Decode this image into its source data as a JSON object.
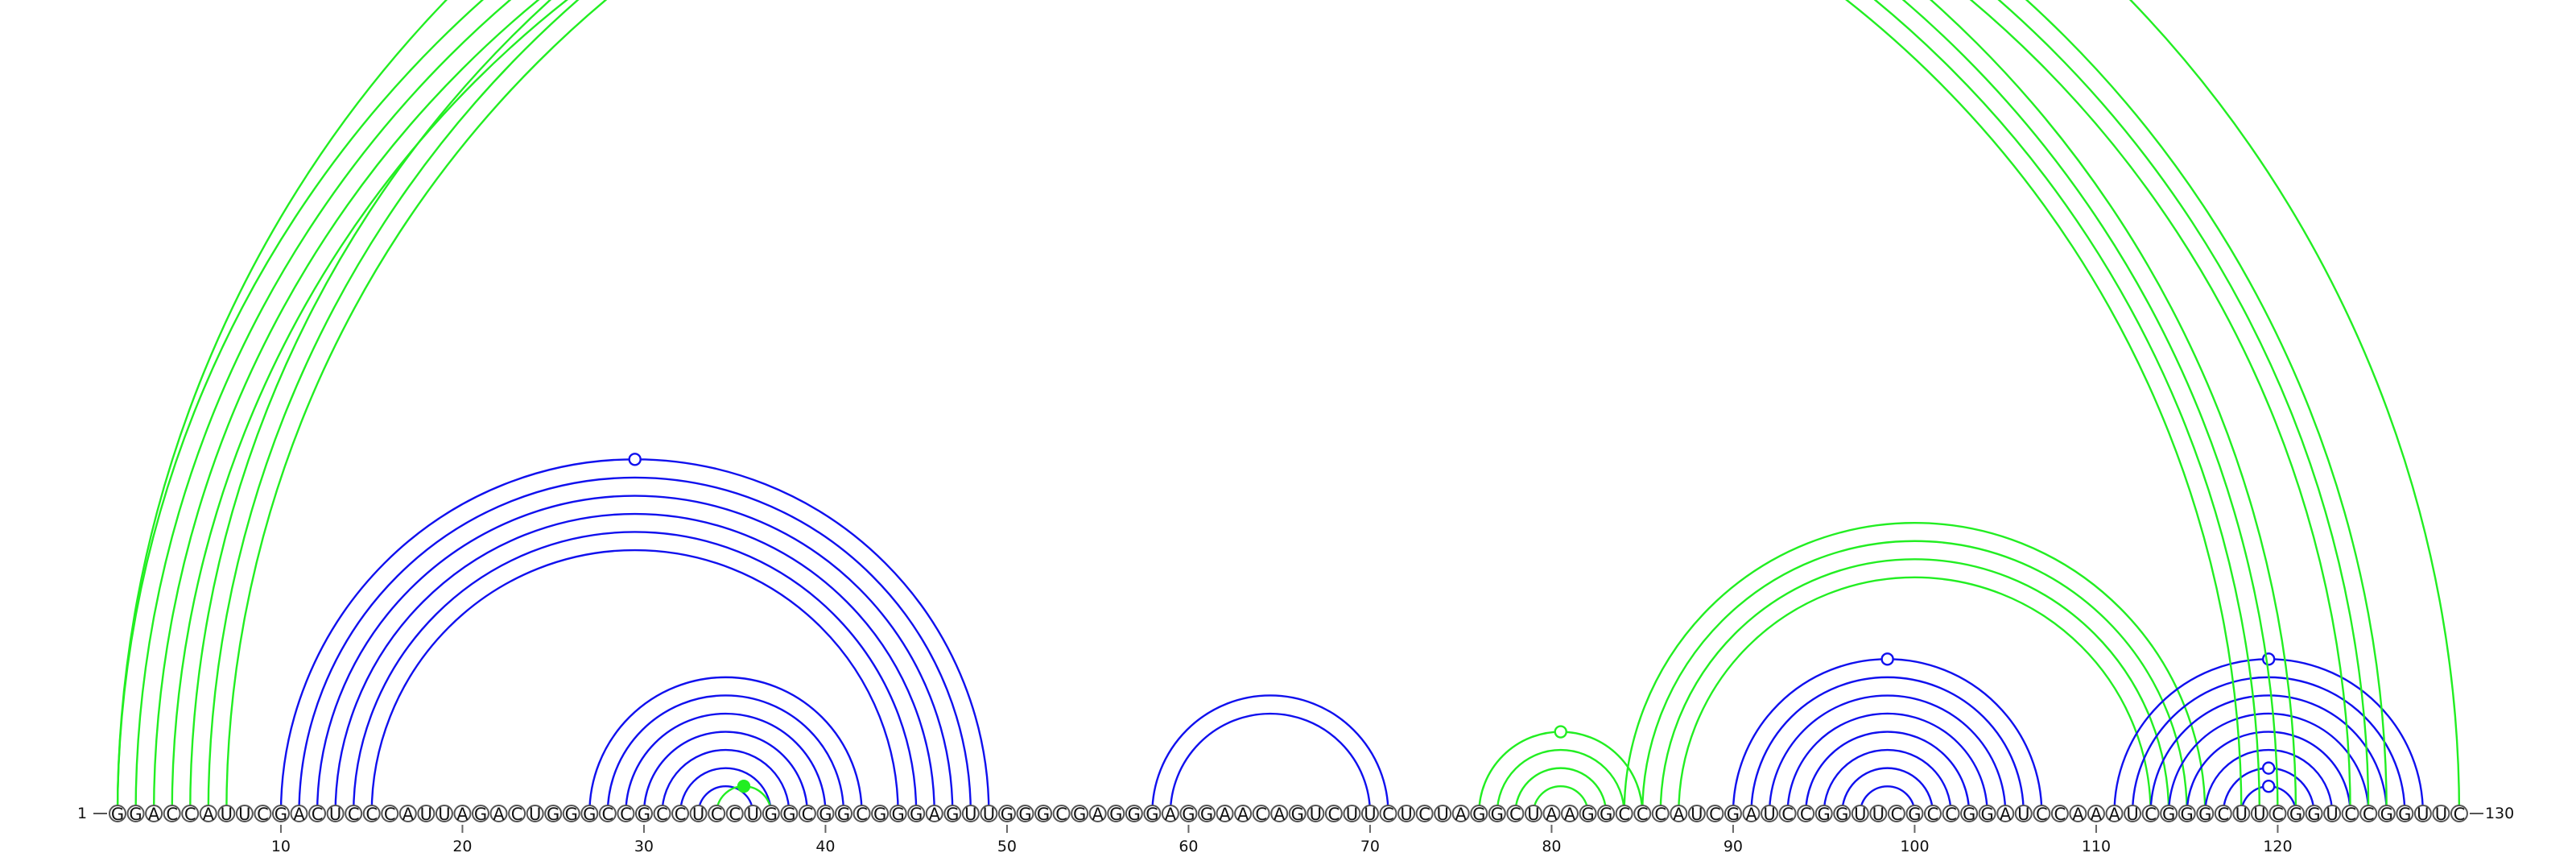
{
  "diagram": {
    "type": "rna-arc-diagram",
    "sequence": "GGACCAUUCGACUCCCAUUAGACUGGGCCGCCUCCUGGCGGCGGGAGUUGGGCGAGGGAGGAACAGUCUUCUCUAGGCUAAGGCCCAUCGAUCCGGUUCGCCGGAUCCAAAUCGGGCUUCGGUCCGGUUC",
    "start_label": "1",
    "end_label": "130",
    "ticks": [
      10,
      20,
      30,
      40,
      50,
      60,
      70,
      80,
      90,
      100,
      110,
      120
    ],
    "colors": {
      "blue": "#1010ee",
      "green": "#22ee22"
    },
    "helices": [
      {
        "color": "blue",
        "pairs": [
          [
            10,
            49
          ],
          [
            11,
            48
          ],
          [
            12,
            47
          ],
          [
            13,
            46
          ],
          [
            14,
            45
          ],
          [
            15,
            44
          ]
        ],
        "apex": "open"
      },
      {
        "color": "blue",
        "pairs": [
          [
            27,
            42
          ],
          [
            28,
            41
          ],
          [
            29,
            40
          ],
          [
            30,
            39
          ],
          [
            31,
            38
          ],
          [
            32,
            37
          ],
          [
            33,
            36
          ]
        ],
        "apex": "none"
      },
      {
        "color": "green",
        "pairs": [
          [
            34,
            37
          ]
        ],
        "apex": "filled"
      },
      {
        "color": "blue",
        "pairs": [
          [
            58,
            71
          ],
          [
            59,
            70
          ]
        ],
        "apex": "none"
      },
      {
        "color": "green",
        "pairs": [
          [
            76,
            85
          ],
          [
            77,
            84
          ],
          [
            78,
            83
          ],
          [
            79,
            82
          ]
        ],
        "apex": "open"
      },
      {
        "color": "green",
        "pairs": [
          [
            84,
            116
          ],
          [
            85,
            115
          ],
          [
            86,
            114
          ],
          [
            87,
            113
          ]
        ],
        "apex": "none"
      },
      {
        "color": "blue",
        "pairs": [
          [
            90,
            107
          ],
          [
            91,
            106
          ],
          [
            92,
            105
          ],
          [
            93,
            104
          ],
          [
            94,
            103
          ],
          [
            95,
            102
          ],
          [
            96,
            101
          ],
          [
            97,
            100
          ]
        ],
        "apex": "open"
      },
      {
        "color": "blue",
        "pairs": [
          [
            111,
            128
          ],
          [
            112,
            127
          ],
          [
            113,
            126
          ],
          [
            114,
            125
          ],
          [
            115,
            124
          ],
          [
            116,
            123
          ]
        ],
        "apex": "open"
      },
      {
        "color": "blue",
        "pairs": [
          [
            117,
            122
          ]
        ],
        "apex": "open"
      },
      {
        "color": "blue",
        "pairs": [
          [
            118,
            121
          ]
        ],
        "apex": "open"
      },
      {
        "color": "green",
        "pairs": [
          [
            1,
            121
          ],
          [
            2,
            120
          ],
          [
            3,
            119
          ],
          [
            4,
            118
          ]
        ],
        "apex": "none"
      },
      {
        "color": "green",
        "pairs": [
          [
            5,
            126
          ],
          [
            6,
            125
          ],
          [
            7,
            124
          ]
        ],
        "apex": "none"
      },
      {
        "color": "green",
        "pairs": [
          [
            1,
            130
          ]
        ],
        "apex": "open"
      }
    ]
  }
}
